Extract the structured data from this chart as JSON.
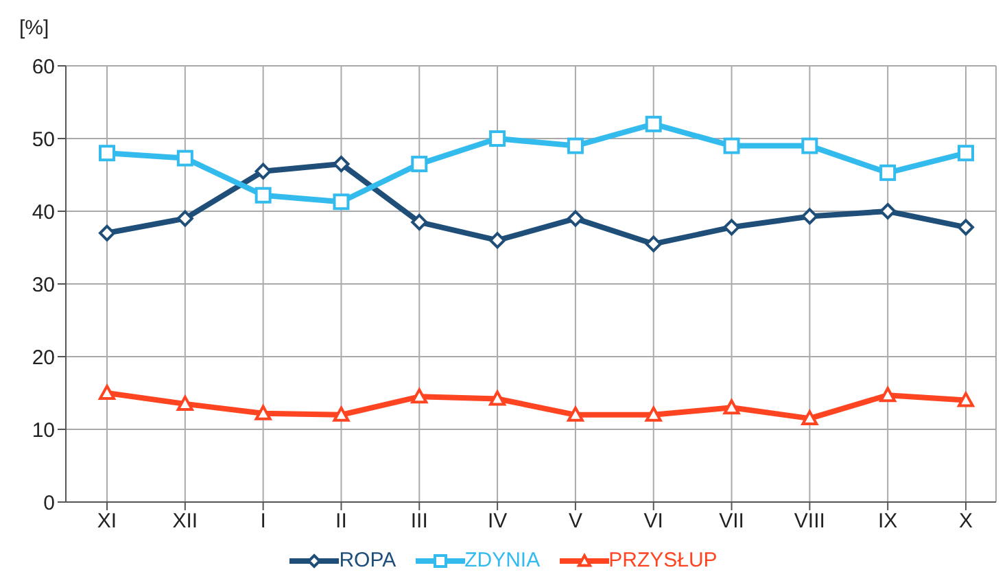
{
  "chart_data": {
    "type": "line",
    "ylabel": "[%]",
    "categories": [
      "XI",
      "XII",
      "I",
      "II",
      "III",
      "IV",
      "V",
      "VI",
      "VII",
      "VIII",
      "IX",
      "X"
    ],
    "series": [
      {
        "name": "ROPA",
        "color": "#1f4e79",
        "marker": "diamond",
        "values": [
          37,
          39,
          45.5,
          46.5,
          38.5,
          36,
          39,
          35.5,
          37.8,
          39.3,
          40,
          37.8
        ]
      },
      {
        "name": "ZDYNIA",
        "color": "#33bbee",
        "marker": "square",
        "values": [
          48,
          47.3,
          42.2,
          41.3,
          46.5,
          50,
          49,
          52,
          49,
          49,
          45.3,
          48
        ]
      },
      {
        "name": "PRZYSŁUP",
        "color": "#ff4422",
        "marker": "triangle",
        "values": [
          15,
          13.5,
          12.2,
          12,
          14.5,
          14.2,
          12,
          12,
          13,
          11.5,
          14.7,
          14
        ]
      }
    ],
    "ylim": [
      0,
      60
    ],
    "yticks": [
      0,
      10,
      20,
      30,
      40,
      50,
      60
    ],
    "grid": true,
    "legend": "bottom",
    "line_style": "solid"
  }
}
